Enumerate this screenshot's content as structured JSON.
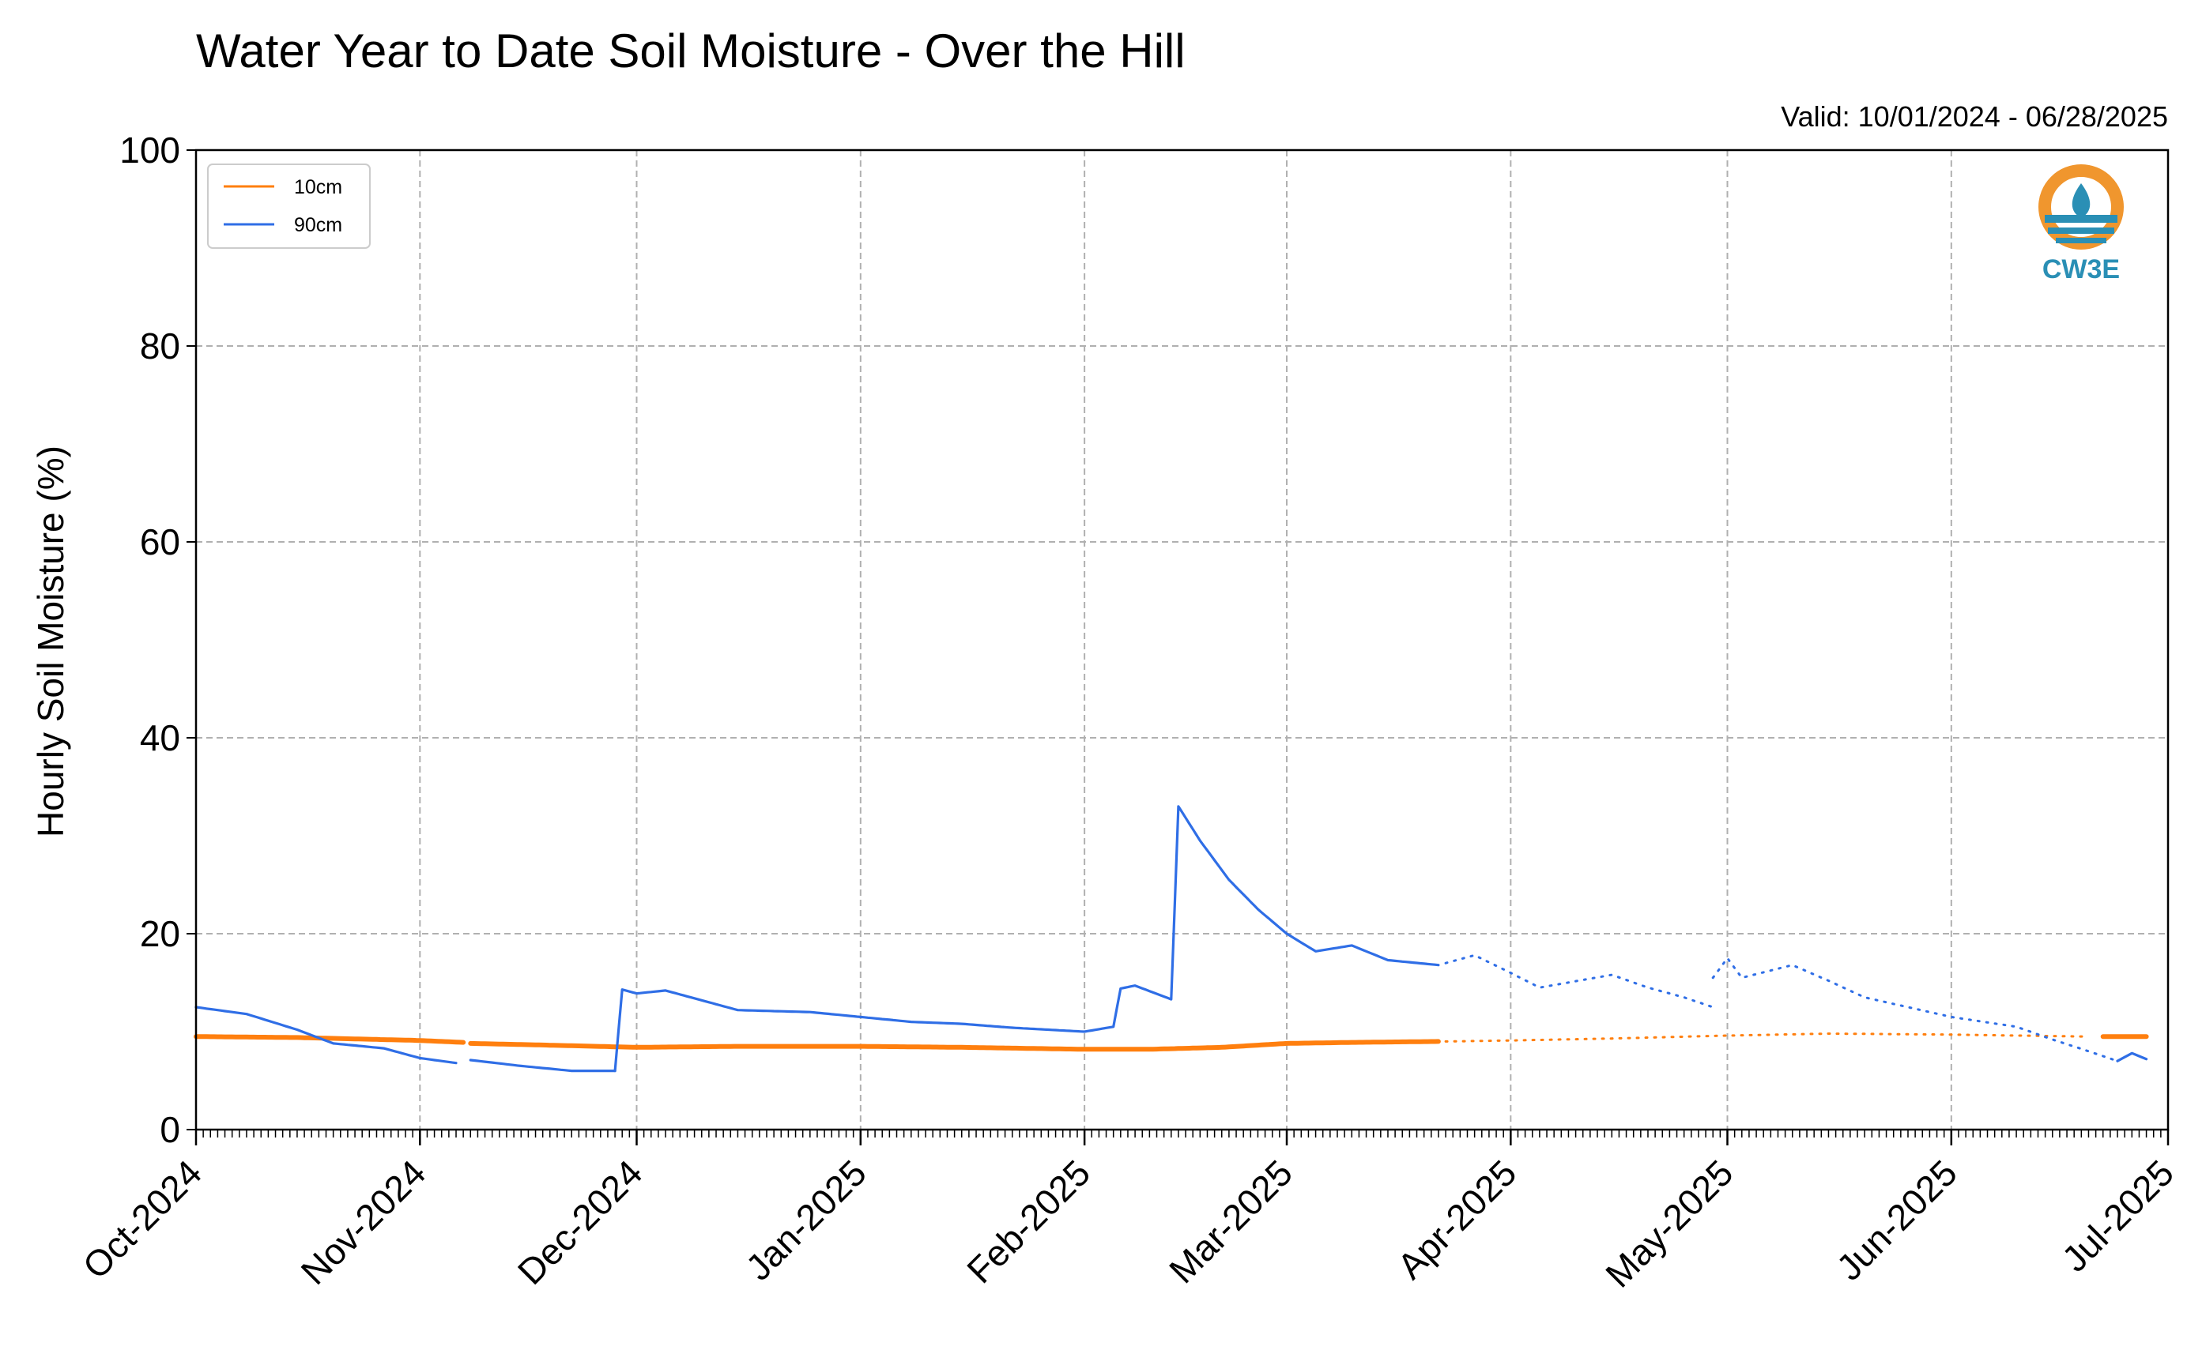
{
  "chart_data": {
    "type": "line",
    "title": "Water Year to Date Soil Moisture - Over the Hill",
    "subtitle": "Valid: 10/01/2024 - 06/28/2025",
    "xlabel": "",
    "ylabel": "Hourly Soil Moisture (%)",
    "ylim": [
      0,
      100
    ],
    "yticks": [
      "0",
      "20",
      "40",
      "60",
      "80",
      "100"
    ],
    "xlim": [
      "2024-10-01",
      "2025-07-01"
    ],
    "xticks": [
      {
        "date": "2024-10-01",
        "label": "Oct-2024"
      },
      {
        "date": "2024-11-01",
        "label": "Nov-2024"
      },
      {
        "date": "2024-12-01",
        "label": "Dec-2024"
      },
      {
        "date": "2025-01-01",
        "label": "Jan-2025"
      },
      {
        "date": "2025-02-01",
        "label": "Feb-2025"
      },
      {
        "date": "2025-03-01",
        "label": "Mar-2025"
      },
      {
        "date": "2025-04-01",
        "label": "Apr-2025"
      },
      {
        "date": "2025-05-01",
        "label": "May-2025"
      },
      {
        "date": "2025-06-01",
        "label": "Jun-2025"
      },
      {
        "date": "2025-07-01",
        "label": "Jul-2025"
      }
    ],
    "grid": true,
    "legend_position": "top-left",
    "series": [
      {
        "name": "10cm",
        "color": "#ff7f0e",
        "segments": [
          {
            "style": "solid",
            "points": [
              [
                "2024-10-01",
                9.5
              ],
              [
                "2024-10-15",
                9.4
              ],
              [
                "2024-11-01",
                9.1
              ],
              [
                "2024-11-07",
                8.9
              ]
            ]
          },
          {
            "style": "solid",
            "points": [
              [
                "2024-11-08",
                8.8
              ],
              [
                "2024-11-20",
                8.6
              ],
              [
                "2024-12-01",
                8.4
              ],
              [
                "2024-12-15",
                8.5
              ],
              [
                "2025-01-01",
                8.5
              ],
              [
                "2025-01-15",
                8.4
              ],
              [
                "2025-02-01",
                8.2
              ],
              [
                "2025-02-10",
                8.2
              ],
              [
                "2025-02-20",
                8.4
              ],
              [
                "2025-03-01",
                8.8
              ],
              [
                "2025-03-10",
                8.9
              ],
              [
                "2025-03-22",
                9.0
              ]
            ]
          },
          {
            "style": "dotted",
            "points": [
              [
                "2025-03-23",
                9.0
              ],
              [
                "2025-04-01",
                9.1
              ],
              [
                "2025-04-15",
                9.3
              ],
              [
                "2025-05-01",
                9.6
              ],
              [
                "2025-05-15",
                9.8
              ],
              [
                "2025-06-01",
                9.7
              ],
              [
                "2025-06-10",
                9.6
              ],
              [
                "2025-06-20",
                9.5
              ]
            ]
          },
          {
            "style": "solid",
            "points": [
              [
                "2025-06-22",
                9.5
              ],
              [
                "2025-06-28",
                9.5
              ]
            ]
          }
        ]
      },
      {
        "name": "90cm",
        "color": "#2f6ee6",
        "segments": [
          {
            "style": "solid",
            "wiggle": 0.5,
            "points": [
              [
                "2024-10-01",
                12.5
              ],
              [
                "2024-10-08",
                11.8
              ],
              [
                "2024-10-15",
                10.2
              ],
              [
                "2024-10-20",
                8.8
              ],
              [
                "2024-10-27",
                8.3
              ],
              [
                "2024-11-01",
                7.3
              ],
              [
                "2024-11-06",
                6.8
              ]
            ]
          },
          {
            "style": "solid",
            "wiggle": 0.3,
            "points": [
              [
                "2024-11-08",
                7.1
              ],
              [
                "2024-11-15",
                6.5
              ],
              [
                "2024-11-22",
                6.0
              ],
              [
                "2024-11-28",
                6.0
              ]
            ]
          },
          {
            "style": "solid",
            "wiggle": 0.4,
            "points": [
              [
                "2024-11-28",
                6.0
              ],
              [
                "2024-11-29",
                14.3
              ],
              [
                "2024-12-01",
                13.9
              ],
              [
                "2024-12-05",
                14.2
              ],
              [
                "2024-12-10",
                13.2
              ],
              [
                "2024-12-15",
                12.2
              ],
              [
                "2024-12-25",
                12.0
              ],
              [
                "2025-01-01",
                11.5
              ],
              [
                "2025-01-08",
                11.0
              ],
              [
                "2025-01-15",
                10.8
              ],
              [
                "2025-01-22",
                10.4
              ],
              [
                "2025-02-01",
                10.0
              ],
              [
                "2025-02-05",
                10.5
              ],
              [
                "2025-02-06",
                14.4
              ],
              [
                "2025-02-08",
                14.7
              ],
              [
                "2025-02-13",
                13.3
              ],
              [
                "2025-02-14",
                33.0
              ],
              [
                "2025-02-17",
                29.5
              ],
              [
                "2025-02-21",
                25.5
              ],
              [
                "2025-02-25",
                22.5
              ],
              [
                "2025-03-01",
                20.0
              ],
              [
                "2025-03-05",
                18.2
              ],
              [
                "2025-03-10",
                18.8
              ],
              [
                "2025-03-15",
                17.3
              ],
              [
                "2025-03-22",
                16.8
              ]
            ]
          },
          {
            "style": "dotted",
            "points": [
              [
                "2025-03-23",
                17.0
              ],
              [
                "2025-03-27",
                17.8
              ],
              [
                "2025-04-01",
                16.0
              ],
              [
                "2025-04-05",
                14.5
              ],
              [
                "2025-04-15",
                15.8
              ],
              [
                "2025-04-20",
                14.5
              ],
              [
                "2025-04-25",
                13.5
              ],
              [
                "2025-04-29",
                12.5
              ]
            ]
          },
          {
            "style": "dotted",
            "points": [
              [
                "2025-04-29",
                15.5
              ],
              [
                "2025-05-01",
                17.5
              ],
              [
                "2025-05-03",
                15.5
              ],
              [
                "2025-05-10",
                16.8
              ],
              [
                "2025-05-15",
                15.2
              ],
              [
                "2025-05-20",
                13.5
              ],
              [
                "2025-06-01",
                11.5
              ],
              [
                "2025-06-10",
                10.5
              ],
              [
                "2025-06-15",
                9.2
              ],
              [
                "2025-06-20",
                8.0
              ],
              [
                "2025-06-24",
                7.0
              ]
            ]
          },
          {
            "style": "solid",
            "wiggle": 0.4,
            "points": [
              [
                "2025-06-24",
                7.0
              ],
              [
                "2025-06-26",
                7.8
              ],
              [
                "2025-06-28",
                7.2
              ]
            ]
          }
        ]
      }
    ]
  },
  "logo": {
    "text": "CW3E",
    "colors": {
      "ring": "#f0962e",
      "wave": "#2a8fb5",
      "text": "#2a8fb5"
    }
  },
  "style": {
    "grid_color": "#b0b0b0",
    "axis_color": "#000000"
  }
}
